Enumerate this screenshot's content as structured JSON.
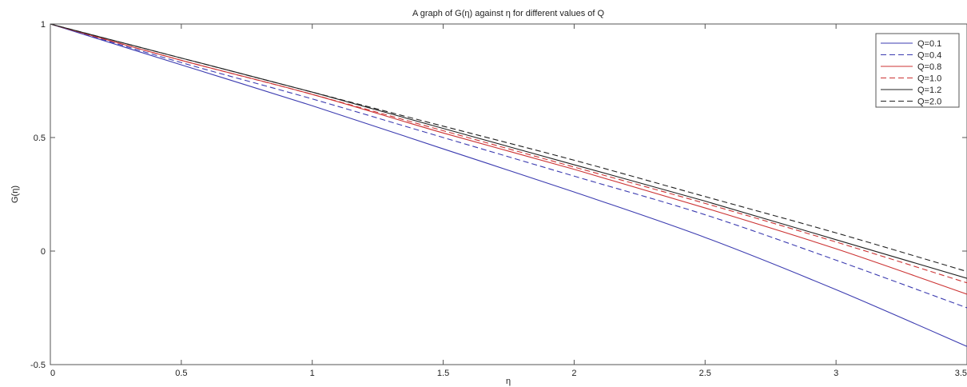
{
  "chart_data": {
    "type": "line",
    "title": "A graph of G(η) against η for different values of Q",
    "xlabel": "η",
    "ylabel": "G(η)",
    "xlim": [
      0,
      3.5
    ],
    "ylim": [
      -0.5,
      1
    ],
    "xticks": [
      "0",
      "0.5",
      "1",
      "1.5",
      "2",
      "2.5",
      "3",
      "3.5"
    ],
    "yticks": [
      "-0.5",
      "0",
      "0.5",
      "1"
    ],
    "grid": false,
    "legend_position": "top-right",
    "x": [
      0,
      0.5,
      1,
      1.5,
      2,
      2.5,
      3,
      3.5
    ],
    "series": [
      {
        "name": "Q=0.1",
        "color": "#3b3bb0",
        "dash": "solid",
        "values": [
          1.0,
          0.82,
          0.64,
          0.45,
          0.26,
          0.06,
          -0.17,
          -0.42
        ]
      },
      {
        "name": "Q=0.4",
        "color": "#3b3bb0",
        "dash": "dashed",
        "values": [
          1.0,
          0.83,
          0.67,
          0.5,
          0.33,
          0.16,
          -0.04,
          -0.25
        ]
      },
      {
        "name": "Q=0.8",
        "color": "#cc3333",
        "dash": "solid",
        "values": [
          1.0,
          0.84,
          0.69,
          0.52,
          0.36,
          0.19,
          0.01,
          -0.19
        ]
      },
      {
        "name": "Q=1.0",
        "color": "#cc3333",
        "dash": "dashed",
        "values": [
          1.0,
          0.84,
          0.69,
          0.53,
          0.37,
          0.21,
          0.04,
          -0.14
        ]
      },
      {
        "name": "Q=1.2",
        "color": "#222222",
        "dash": "solid",
        "values": [
          1.0,
          0.85,
          0.7,
          0.54,
          0.38,
          0.22,
          0.05,
          -0.12
        ]
      },
      {
        "name": "Q=2.0",
        "color": "#222222",
        "dash": "dashed",
        "values": [
          1.0,
          0.85,
          0.7,
          0.55,
          0.4,
          0.24,
          0.08,
          -0.09
        ]
      }
    ]
  }
}
